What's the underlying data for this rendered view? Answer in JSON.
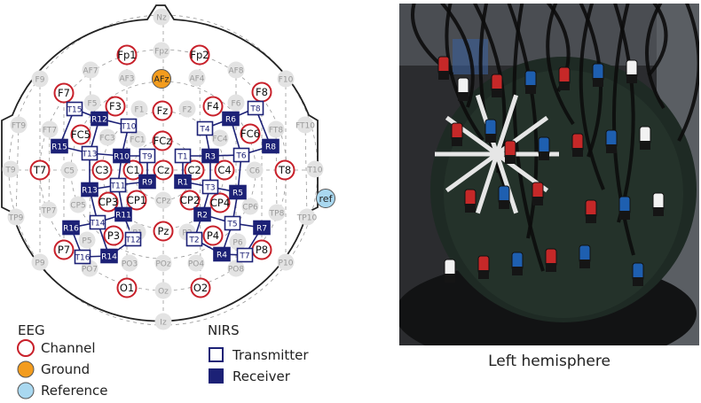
{
  "legend": {
    "eeg_title": "EEG",
    "channel": "Channel",
    "ground": "Ground",
    "reference": "Reference",
    "nirs_title": "NIRS",
    "transmitter": "Transmitter",
    "receiver": "Receiver"
  },
  "photo_caption": "Left hemisphere",
  "colors": {
    "eeg_channel": "#c8202a",
    "ground": "#f39c1e",
    "reference": "#a9d8f0",
    "nirs": "#1c2176",
    "inactive": "#e3e3e3"
  },
  "inactive_positions": [
    "Nz",
    "Fpz",
    "AF7",
    "AF3",
    "AF4",
    "AF8",
    "F9",
    "F10",
    "F5",
    "F1",
    "F2",
    "F6",
    "FT9",
    "FT7",
    "FT8",
    "FT10",
    "FC3",
    "FC1",
    "FC4",
    "T9",
    "T10",
    "C5",
    "C6",
    "TP9",
    "TP7",
    "TP8",
    "TP10",
    "CP5",
    "CPz",
    "CP6",
    "P9",
    "P5",
    "P1",
    "P2",
    "P6",
    "P10",
    "PO7",
    "PO3",
    "POz",
    "PO4",
    "PO8",
    "Oz",
    "Iz"
  ],
  "eeg_channels": [
    "Fp1",
    "Fp2",
    "F7",
    "F3",
    "Fz",
    "F4",
    "F8",
    "FC5",
    "FCz",
    "FC6",
    "T7",
    "C3",
    "C1",
    "Cz",
    "C2",
    "C4",
    "T8",
    "CP3",
    "CP1",
    "CP2",
    "CP4",
    "P7",
    "P3",
    "Pz",
    "P4",
    "P8",
    "O1",
    "O2"
  ],
  "ground_electrode": "AFz",
  "reference_electrode": "ref",
  "transmitters": [
    "T1",
    "T2",
    "T3",
    "T4",
    "T5",
    "T6",
    "T7",
    "T8",
    "T9",
    "T10",
    "T11",
    "T12",
    "T13",
    "T14",
    "T15",
    "T16"
  ],
  "receivers": [
    "R1",
    "R2",
    "R3",
    "R4",
    "R5",
    "R6",
    "R7",
    "R8",
    "R9",
    "R10",
    "R11",
    "R12",
    "R13",
    "R14",
    "R15",
    "R16"
  ]
}
